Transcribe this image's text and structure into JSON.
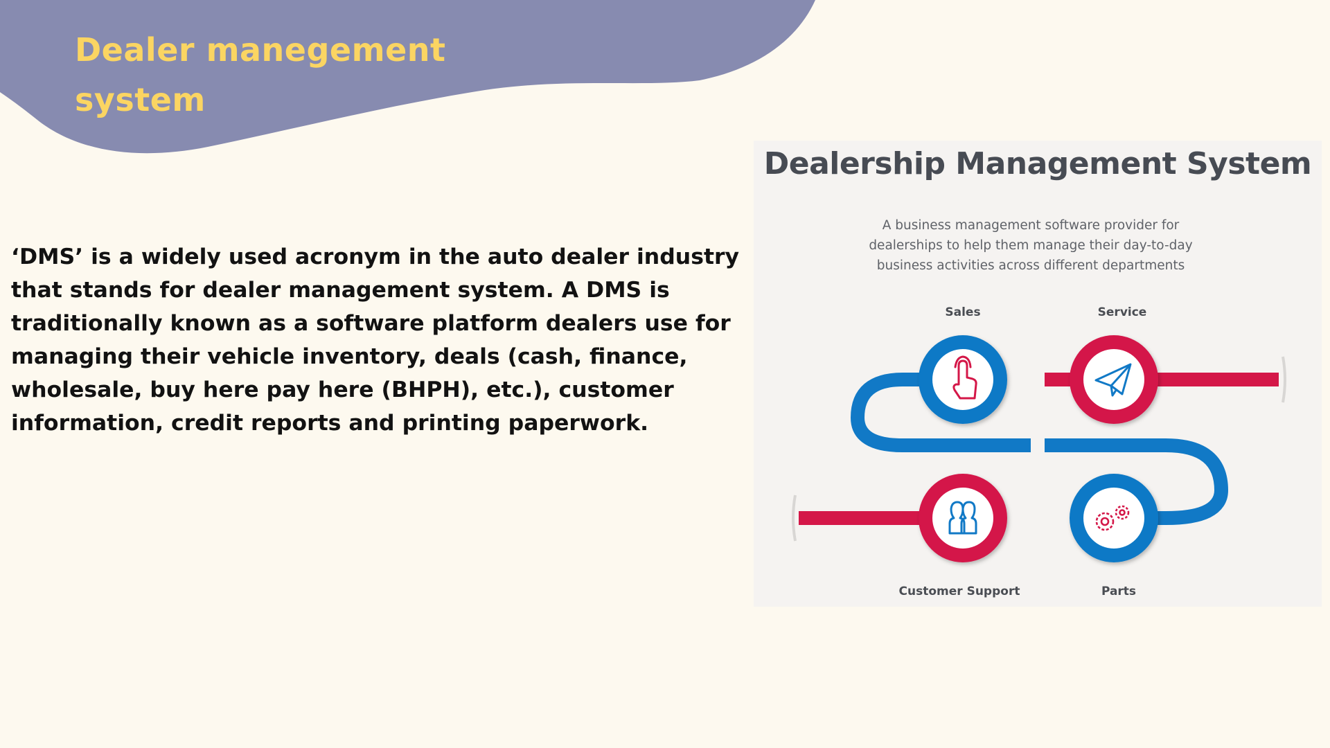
{
  "slide": {
    "title": "Dealer manegement system",
    "body": "‘DMS’ is a widely used acronym in the auto dealer industry that stands for dealer management system. A DMS is traditionally known as a software platform dealers use for managing their vehicle inventory, deals (cash, finance, wholesale, buy here pay here (BHPH), etc.), customer information, credit reports and printing paperwork."
  },
  "figure": {
    "title": "Dealership Management System",
    "description": "A business management software provider for dealerships to help them manage their day-to-day business activities across different departments",
    "nodes": [
      {
        "label": "Sales",
        "icon": "hand-pointer-icon",
        "ring_color": "#1179c6"
      },
      {
        "label": "Service",
        "icon": "paper-plane-icon",
        "ring_color": "#d41748"
      },
      {
        "label": "Customer Support",
        "icon": "users-icon",
        "ring_color": "#d41748"
      },
      {
        "label": "Parts",
        "icon": "gears-icon",
        "ring_color": "#1179c6"
      }
    ]
  },
  "colors": {
    "background": "#fdf9ef",
    "blob": "#878bb0",
    "title": "#fbd562",
    "blue": "#1179c6",
    "red": "#d41748"
  }
}
